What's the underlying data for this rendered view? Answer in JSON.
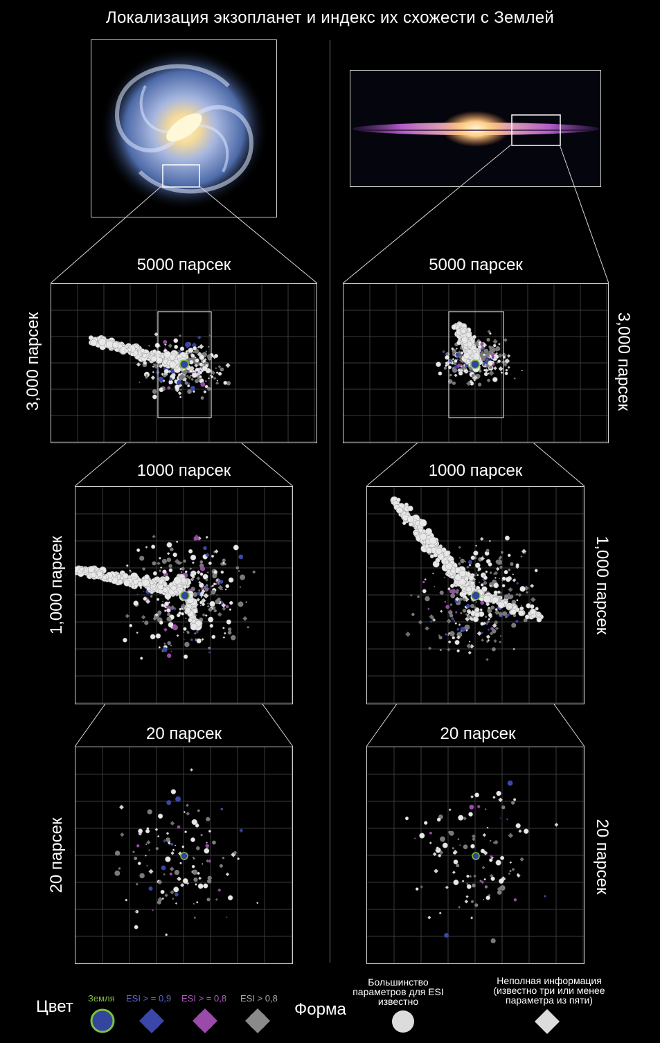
{
  "title": "Локализация экзопланет и индекс их схожести с Землей",
  "panels": {
    "left": {
      "top_label": "5000 парсек",
      "top_side": "3,000 парсек",
      "mid_label": "1000 парсек",
      "mid_side": "1,000 парсек",
      "bottom_label": "20 парсек",
      "bottom_side": "20 парсек"
    },
    "right": {
      "top_label": "5000 парсек",
      "top_side": "3,000 парсек",
      "mid_label": "1000 парсек",
      "mid_side": "1,000 парсек",
      "bottom_label": "20 парсек",
      "bottom_side": "20 парсек"
    }
  },
  "legend": {
    "color_title": "Цвет",
    "shape_title": "Форма",
    "colors": [
      {
        "label": "Земля",
        "color": "#33459c",
        "label_color": "#7fbf3f"
      },
      {
        "label": "ESI > = 0,9",
        "color": "#3b47a8",
        "label_color": "#5a67d0"
      },
      {
        "label": "ESI > = 0,8",
        "color": "#9a4aa8",
        "label_color": "#b05cc0"
      },
      {
        "label": "ESI > 0,8",
        "color": "#8a8a8a",
        "label_color": "#a9a9a9"
      }
    ],
    "shapes": [
      {
        "label": "Большинство параметров для ESI известно",
        "icon": "circle"
      },
      {
        "label": "Неполная информация (известно три или менее параметра из пяти)",
        "icon": "diamond"
      }
    ]
  }
}
